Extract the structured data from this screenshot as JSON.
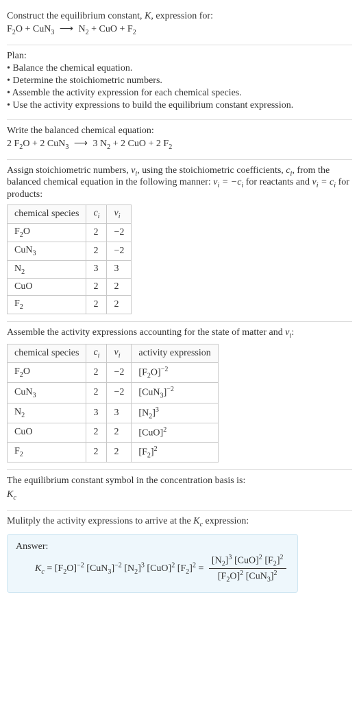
{
  "styling": {
    "body_bg": "#ffffff",
    "text_color": "#333333",
    "divider_color": "#dddddd",
    "table_border_color": "#c8c8c8",
    "table_header_bg": "#fafafa",
    "answer_bg": "#eef7fc",
    "answer_border": "#cfe6f2",
    "font_family": "Georgia, 'Times New Roman', serif",
    "font_size_pt": 10
  },
  "header": {
    "prompt_line1": "Construct the equilibrium constant, ",
    "K": "K",
    "prompt_line1b": ", expression for:",
    "reaction_plain": "F2O + CuN3 ⟶ N2 + CuO + F2",
    "reactants": [
      {
        "formula": "F",
        "sub": "2",
        "tail": "O"
      },
      {
        "formula": "CuN",
        "sub": "3",
        "tail": ""
      }
    ],
    "products": [
      {
        "formula": "N",
        "sub": "2",
        "tail": ""
      },
      {
        "formula": "CuO",
        "sub": "",
        "tail": ""
      },
      {
        "formula": "F",
        "sub": "2",
        "tail": ""
      }
    ]
  },
  "plan": {
    "title": "Plan:",
    "items": [
      "• Balance the chemical equation.",
      "• Determine the stoichiometric numbers.",
      "• Assemble the activity expression for each chemical species.",
      "• Use the activity expressions to build the equilibrium constant expression."
    ]
  },
  "balanced": {
    "intro": "Write the balanced chemical equation:",
    "equation_plain": "2 F2O + 2 CuN3 ⟶ 3 N2 + 2 CuO + 2 F2",
    "terms_left": [
      {
        "coef": "2",
        "a": "F",
        "sub": "2",
        "tail": "O"
      },
      {
        "coef": "2",
        "a": "CuN",
        "sub": "3",
        "tail": ""
      }
    ],
    "terms_right": [
      {
        "coef": "3",
        "a": "N",
        "sub": "2",
        "tail": ""
      },
      {
        "coef": "2",
        "a": "CuO",
        "sub": "",
        "tail": ""
      },
      {
        "coef": "2",
        "a": "F",
        "sub": "2",
        "tail": ""
      }
    ]
  },
  "stoich": {
    "intro_a": "Assign stoichiometric numbers, ",
    "nu": "ν",
    "i": "i",
    "intro_b": ", using the stoichiometric coefficients, ",
    "c": "c",
    "intro_c": ", from the balanced chemical equation in the following manner: ",
    "rule1": "νᵢ = −cᵢ",
    "intro_d": " for reactants and ",
    "rule2": "νᵢ = cᵢ",
    "intro_e": " for products:",
    "table": {
      "headers": [
        "chemical species",
        "cᵢ",
        "νᵢ"
      ],
      "rows": [
        {
          "species_a": "F",
          "species_sub": "2",
          "species_tail": "O",
          "c": "2",
          "nu": "−2"
        },
        {
          "species_a": "CuN",
          "species_sub": "3",
          "species_tail": "",
          "c": "2",
          "nu": "−2"
        },
        {
          "species_a": "N",
          "species_sub": "2",
          "species_tail": "",
          "c": "3",
          "nu": "3"
        },
        {
          "species_a": "CuO",
          "species_sub": "",
          "species_tail": "",
          "c": "2",
          "nu": "2"
        },
        {
          "species_a": "F",
          "species_sub": "2",
          "species_tail": "",
          "c": "2",
          "nu": "2"
        }
      ]
    }
  },
  "activity": {
    "intro_a": "Assemble the activity expressions accounting for the state of matter and ",
    "nu": "ν",
    "i": "i",
    "intro_b": ":",
    "table": {
      "headers": [
        "chemical species",
        "cᵢ",
        "νᵢ",
        "activity expression"
      ],
      "rows": [
        {
          "species_a": "F",
          "species_sub": "2",
          "species_tail": "O",
          "c": "2",
          "nu": "−2",
          "act_a": "F",
          "act_sub": "2",
          "act_tail": "O",
          "act_exp": "−2"
        },
        {
          "species_a": "CuN",
          "species_sub": "3",
          "species_tail": "",
          "c": "2",
          "nu": "−2",
          "act_a": "CuN",
          "act_sub": "3",
          "act_tail": "",
          "act_exp": "−2"
        },
        {
          "species_a": "N",
          "species_sub": "2",
          "species_tail": "",
          "c": "3",
          "nu": "3",
          "act_a": "N",
          "act_sub": "2",
          "act_tail": "",
          "act_exp": "3"
        },
        {
          "species_a": "CuO",
          "species_sub": "",
          "species_tail": "",
          "c": "2",
          "nu": "2",
          "act_a": "CuO",
          "act_sub": "",
          "act_tail": "",
          "act_exp": "2"
        },
        {
          "species_a": "F",
          "species_sub": "2",
          "species_tail": "",
          "c": "2",
          "nu": "2",
          "act_a": "F",
          "act_sub": "2",
          "act_tail": "",
          "act_exp": "2"
        }
      ]
    }
  },
  "kc_symbol": {
    "line": "The equilibrium constant symbol in the concentration basis is:",
    "K": "K",
    "c": "c"
  },
  "final": {
    "intro_a": "Mulitply the activity expressions to arrive at the ",
    "K": "K",
    "c": "c",
    "intro_b": " expression:",
    "answer_label": "Answer:",
    "lhs_K": "K",
    "lhs_c": "c",
    "flat_terms": [
      {
        "a": "F",
        "sub": "2",
        "tail": "O",
        "exp": "−2"
      },
      {
        "a": "CuN",
        "sub": "3",
        "tail": "",
        "exp": "−2"
      },
      {
        "a": "N",
        "sub": "2",
        "tail": "",
        "exp": "3"
      },
      {
        "a": "CuO",
        "sub": "",
        "tail": "",
        "exp": "2"
      },
      {
        "a": "F",
        "sub": "2",
        "tail": "",
        "exp": "2"
      }
    ],
    "frac_num": [
      {
        "a": "N",
        "sub": "2",
        "tail": "",
        "exp": "3"
      },
      {
        "a": "CuO",
        "sub": "",
        "tail": "",
        "exp": "2"
      },
      {
        "a": "F",
        "sub": "2",
        "tail": "",
        "exp": "2"
      }
    ],
    "frac_den": [
      {
        "a": "F",
        "sub": "2",
        "tail": "O",
        "exp": "2"
      },
      {
        "a": "CuN",
        "sub": "3",
        "tail": "",
        "exp": "2"
      }
    ]
  }
}
